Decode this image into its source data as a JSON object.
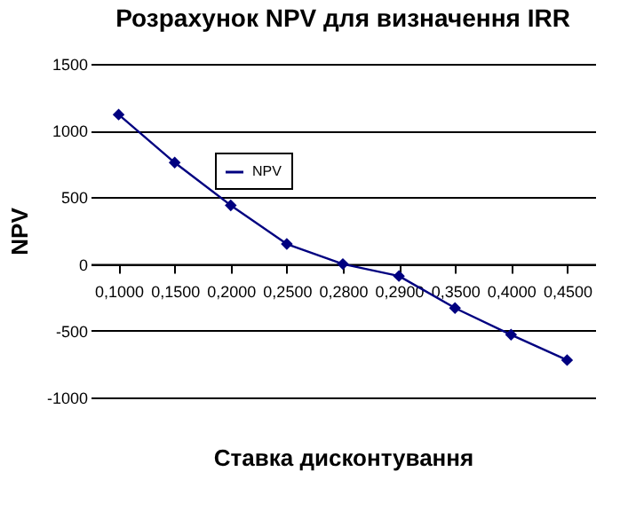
{
  "chart_data": {
    "type": "line",
    "title": "Розрахунок NPV для визначення IRR",
    "xlabel": "Ставка дисконтування",
    "ylabel": "NPV",
    "categories": [
      "0,1000",
      "0,1500",
      "0,2000",
      "0,2500",
      "0,2800",
      "0,2900",
      "0,3500",
      "0,4000",
      "0,4500"
    ],
    "series": [
      {
        "name": "NPV",
        "color": "#000080",
        "values": [
          1120,
          760,
          440,
          150,
          0,
          -90,
          -330,
          -530,
          -720
        ]
      }
    ],
    "ylim": [
      -1000,
      1500
    ],
    "yticks": [
      -1000,
      -500,
      0,
      500,
      1000,
      1500
    ],
    "grid": "y",
    "legend": "top",
    "marker": "diamond"
  }
}
